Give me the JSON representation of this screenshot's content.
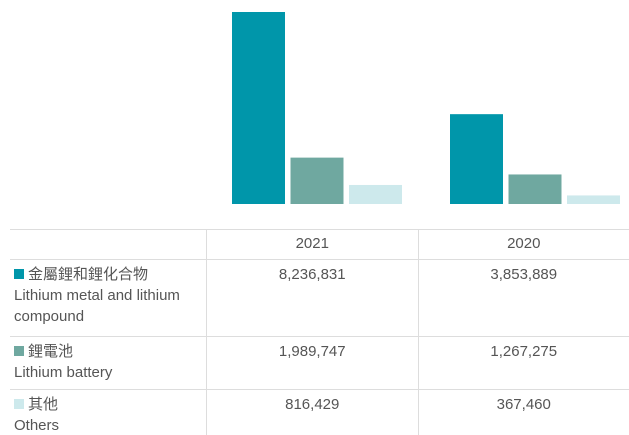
{
  "chart_data": {
    "type": "bar",
    "categories": [
      "2021",
      "2020"
    ],
    "series": [
      {
        "name": "金屬鋰和鋰化合物",
        "name_en": "Lithium metal and lithium compound",
        "color": "#0096aa",
        "values": [
          8236831,
          3853889
        ],
        "value_labels": [
          "8,236,831",
          "3,853,889"
        ]
      },
      {
        "name": "鋰電池",
        "name_en": "Lithium battery",
        "color": "#6fa8a0",
        "values": [
          1989747,
          1267275
        ],
        "value_labels": [
          "1,989,747",
          "1,267,275"
        ]
      },
      {
        "name": "其他",
        "name_en": "Others",
        "color": "#cde9ec",
        "values": [
          816429,
          367460
        ],
        "value_labels": [
          "816,429",
          "367,460"
        ]
      }
    ]
  }
}
